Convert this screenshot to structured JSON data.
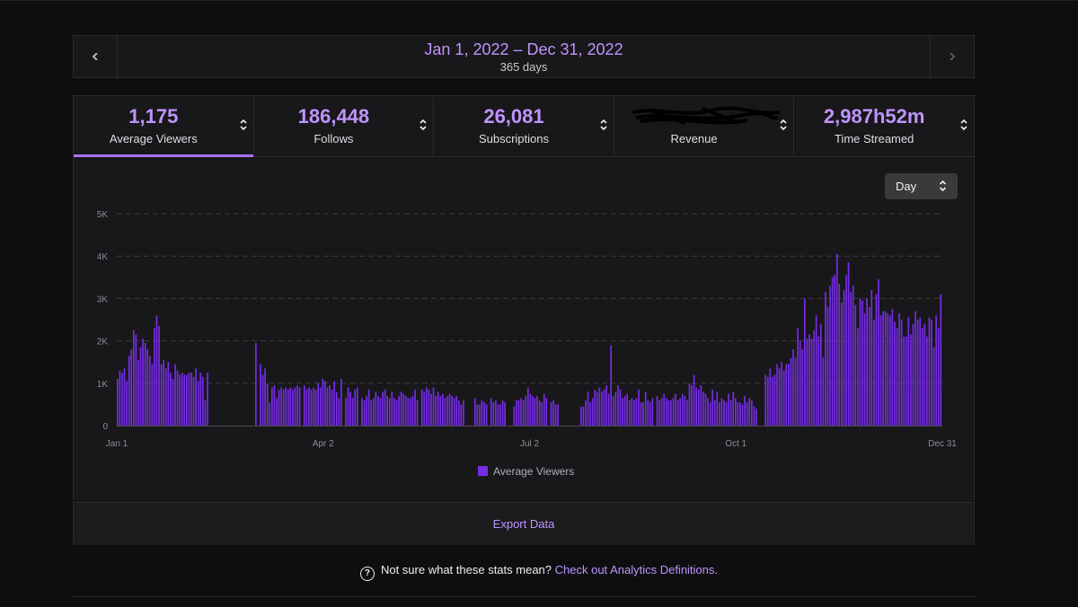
{
  "date_bar": {
    "range": "Jan 1, 2022 – Dec 31, 2022",
    "days": "365 days"
  },
  "stats": [
    {
      "value": "1,175",
      "label": "Average Viewers",
      "active": true
    },
    {
      "value": "186,448",
      "label": "Follows"
    },
    {
      "value": "26,081",
      "label": "Subscriptions"
    },
    {
      "value": "",
      "label": "Revenue",
      "redacted": true
    },
    {
      "value": "2,987h52m",
      "label": "Time Streamed"
    }
  ],
  "granularity_select": {
    "value": "Day"
  },
  "chart_data": {
    "type": "bar",
    "series_name": "Average Viewers",
    "color": "#772ce8",
    "y_ticks": [
      "0",
      "1K",
      "2K",
      "3K",
      "4K",
      "5K"
    ],
    "ylim": [
      0,
      5000
    ],
    "x_ticks": [
      "Jan 1",
      "Apr 2",
      "Jul 2",
      "Oct 1",
      "Dec 31"
    ],
    "xlim": [
      "2022-01-01",
      "2022-12-31"
    ],
    "grid": true,
    "legend": "bottom-center",
    "values": [
      1100,
      1300,
      1250,
      1350,
      1050,
      1650,
      1800,
      2250,
      2150,
      1550,
      1850,
      2050,
      1950,
      1800,
      1650,
      1450,
      2300,
      2600,
      2350,
      1450,
      1550,
      1350,
      1500,
      1250,
      1100,
      1450,
      1300,
      1200,
      1250,
      1200,
      1200,
      1250,
      1250,
      1150,
      1350,
      1050,
      1250,
      1150,
      600,
      1250,
      0,
      0,
      0,
      0,
      0,
      0,
      0,
      0,
      0,
      0,
      0,
      0,
      0,
      0,
      0,
      0,
      0,
      0,
      0,
      0,
      1950,
      0,
      1450,
      1200,
      1350,
      1000,
      550,
      900,
      950,
      650,
      850,
      900,
      850,
      900,
      850,
      900,
      850,
      900,
      950,
      900,
      0,
      950,
      850,
      900,
      850,
      900,
      850,
      1000,
      900,
      1100,
      1050,
      900,
      950,
      850,
      1050,
      800,
      650,
      1100,
      0,
      650,
      900,
      800,
      650,
      850,
      900,
      0,
      650,
      600,
      700,
      850,
      600,
      650,
      800,
      700,
      650,
      800,
      850,
      700,
      650,
      800,
      650,
      600,
      700,
      800,
      750,
      700,
      650,
      650,
      700,
      850,
      600,
      0,
      850,
      800,
      900,
      850,
      750,
      900,
      700,
      800,
      700,
      750,
      650,
      700,
      750,
      700,
      650,
      700,
      600,
      500,
      600,
      0,
      0,
      0,
      0,
      650,
      500,
      500,
      600,
      550,
      500,
      0,
      650,
      550,
      600,
      500,
      500,
      600,
      550,
      0,
      0,
      0,
      450,
      600,
      600,
      650,
      600,
      700,
      900,
      750,
      700,
      650,
      700,
      600,
      550,
      750,
      650,
      0,
      550,
      600,
      500,
      500,
      0,
      0,
      0,
      0,
      0,
      0,
      0,
      0,
      0,
      450,
      450,
      600,
      800,
      550,
      650,
      850,
      800,
      900,
      800,
      850,
      950,
      750,
      1900,
      700,
      800,
      950,
      850,
      650,
      700,
      750,
      600,
      650,
      600,
      650,
      850,
      550,
      550,
      800,
      600,
      550,
      650,
      0,
      700,
      600,
      650,
      750,
      650,
      600,
      600,
      650,
      750,
      600,
      650,
      750,
      700,
      600,
      1000,
      950,
      1200,
      900,
      850,
      950,
      800,
      750,
      650,
      550,
      850,
      600,
      800,
      550,
      650,
      600,
      550,
      750,
      600,
      800,
      650,
      550,
      550,
      500,
      700,
      550,
      650,
      600,
      450,
      400,
      0,
      0,
      0,
      1200,
      1150,
      1350,
      1150,
      1200,
      1450,
      1350,
      1500,
      1300,
      1450,
      1450,
      1600,
      1800,
      1600,
      2300,
      2000,
      1800,
      3000,
      2050,
      2150,
      2050,
      2250,
      2600,
      2100,
      2400,
      1600,
      3150,
      2800,
      3300,
      3500,
      3550,
      4050,
      3350,
      2900,
      3200,
      3550,
      3850,
      3150,
      3300,
      2850,
      2300,
      3000,
      2950,
      2650,
      3000,
      2800,
      3200,
      2500,
      3100,
      3450,
      2600,
      2700,
      2700,
      2650,
      2600,
      2750,
      2450,
      2300,
      2650,
      2500,
      2100,
      2100,
      2550,
      2150,
      2400,
      2700,
      2500,
      2550,
      2300,
      2400,
      2100,
      2550,
      2500,
      1850,
      2600,
      2300,
      3100
    ]
  },
  "export": {
    "label": "Export Data"
  },
  "help": {
    "text": "Not sure what these stats mean?",
    "link": "Check out Analytics Definitions."
  }
}
